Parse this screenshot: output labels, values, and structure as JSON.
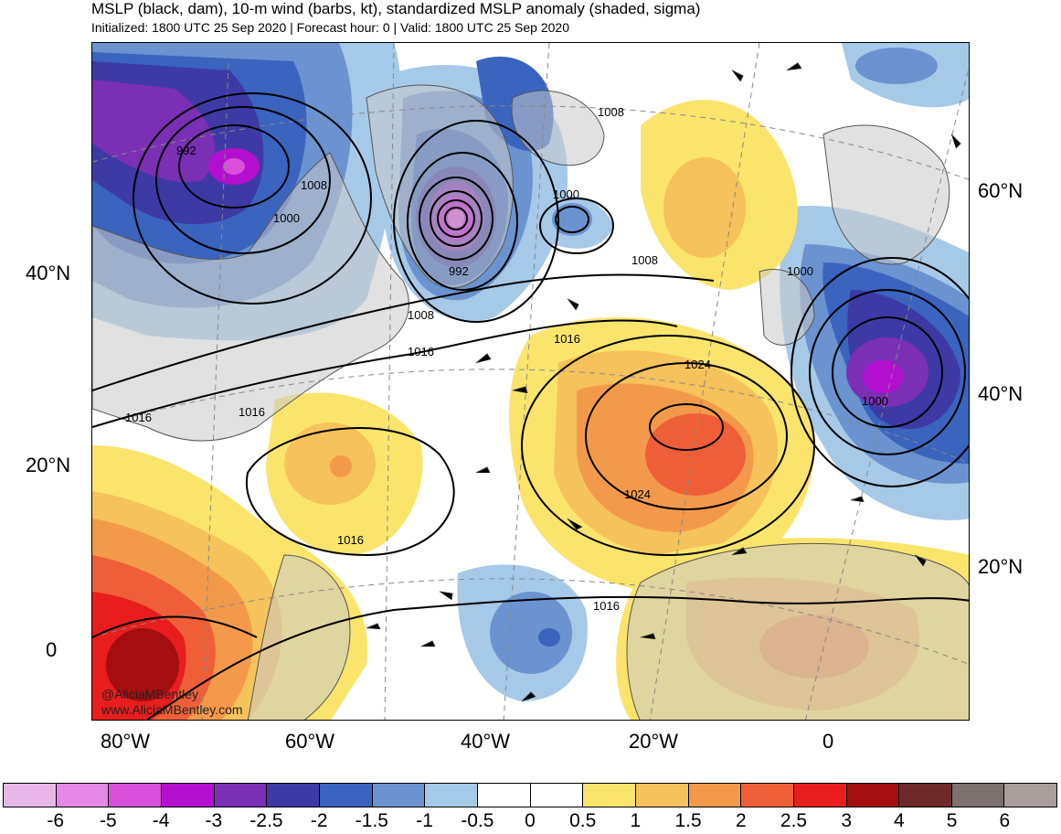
{
  "header": {
    "title": "MSLP (black, dam), 10-m wind (barbs, kt), standardized MSLP anomaly (shaded, sigma)",
    "subtitle": "Initialized: 1800 UTC 25 Sep 2020 | Forecast hour: 0 | Valid: 1800 UTC 25 Sep 2020"
  },
  "map": {
    "left_lat_labels": [
      "40°N",
      "20°N",
      "0"
    ],
    "right_lat_labels": [
      "60°N",
      "40°N",
      "20°N"
    ],
    "lon_labels": [
      "80°W",
      "60°W",
      "40°W",
      "20°W",
      "0"
    ],
    "isobar_labels": [
      "992",
      "1008",
      "1000",
      "992",
      "1000",
      "1008",
      "1008",
      "1000",
      "1016",
      "1008",
      "1016",
      "1024",
      "1016",
      "1016",
      "1000",
      "1024",
      "1016",
      "1016"
    ],
    "credits": [
      "@AliciaMBentley",
      "www.AliciaMBentley.com"
    ],
    "colors": {
      "land": "#c8c8c8",
      "border": "#555555",
      "isobar": "#000000",
      "grid": "#888888"
    }
  },
  "colorbar": {
    "labels": [
      "-6",
      "-5",
      "-4",
      "-3",
      "-2.5",
      "-2",
      "-1.5",
      "-1",
      "-0.5",
      "0",
      "0.5",
      "1",
      "1.5",
      "2",
      "2.5",
      "3",
      "4",
      "5",
      "6"
    ],
    "colors": [
      "#e8b9e8",
      "#e688e6",
      "#d94fd9",
      "#b30fce",
      "#7b2fb5",
      "#3d3aa6",
      "#3a64be",
      "#6a93d0",
      "#a6c9e8",
      "#ffffff",
      "#ffffff",
      "#fbe46c",
      "#f6c25b",
      "#f39a4a",
      "#ef5f37",
      "#e81d1d",
      "#a40e0e",
      "#6e2a2a",
      "#7c716f",
      "#a99e9c"
    ]
  }
}
